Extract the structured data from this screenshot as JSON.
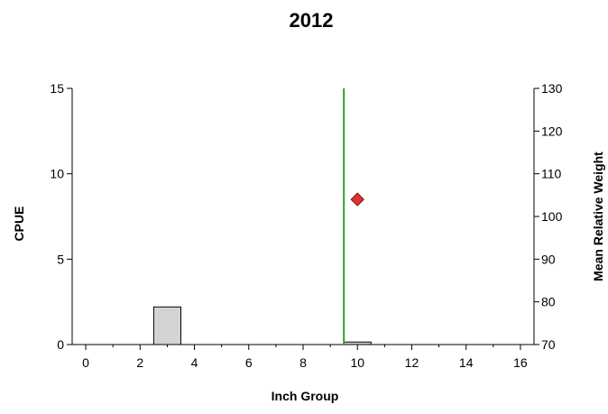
{
  "chart_data": {
    "type": "bar",
    "title": "2012",
    "xlabel": "Inch Group",
    "ylabel": "CPUE",
    "y2label": "Mean Relative Weight",
    "xlim": [
      -0.5,
      16.5
    ],
    "ylim": [
      0,
      15
    ],
    "y2lim": [
      70,
      130
    ],
    "x_ticks": [
      "0",
      "2",
      "4",
      "6",
      "8",
      "10",
      "12",
      "14",
      "16"
    ],
    "y_ticks": [
      "0",
      "5",
      "10",
      "15"
    ],
    "y2_ticks": [
      "70",
      "80",
      "90",
      "100",
      "110",
      "120",
      "130"
    ],
    "bars": {
      "x": [
        3,
        10
      ],
      "values": [
        2.2,
        0.15
      ],
      "color": "#d3d3d3"
    },
    "markers": {
      "x": [
        10
      ],
      "values": [
        104
      ],
      "axis": "y2",
      "shape": "diamond",
      "color": "#e03030"
    },
    "reference_line": {
      "x": 9.5,
      "color": "#2ca02c"
    },
    "grid": false,
    "legend": "none"
  }
}
